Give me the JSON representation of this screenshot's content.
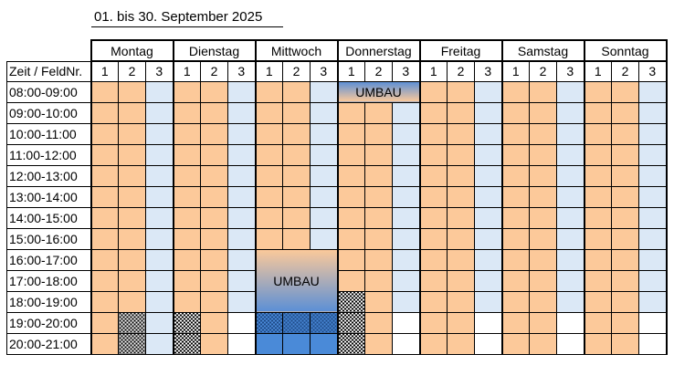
{
  "title": "01.  bis 30. September 2025",
  "header": {
    "corner": "Zeit / FeldNr.",
    "days": [
      "Montag",
      "Dienstag",
      "Mittwoch",
      "Donnerstag",
      "Freitag",
      "Samstag",
      "Sonntag"
    ],
    "fields": [
      "1",
      "2",
      "3"
    ]
  },
  "times": [
    "08:00-09:00",
    "09:00-10:00",
    "10:00-11:00",
    "11:00-12:00",
    "12:00-13:00",
    "13:00-14:00",
    "14:00-15:00",
    "15:00-16:00",
    "16:00-17:00",
    "17:00-18:00",
    "18:00-19:00",
    "19:00-20:00",
    "20:00-21:00"
  ],
  "labels": {
    "umbau_thursday": "UMBAU",
    "umbau_wednesday": "UMBAU"
  },
  "colors": {
    "orange": "#fcc99a",
    "light_blue": "#dbe8f6",
    "dark_blue": "#4a8ad8"
  }
}
